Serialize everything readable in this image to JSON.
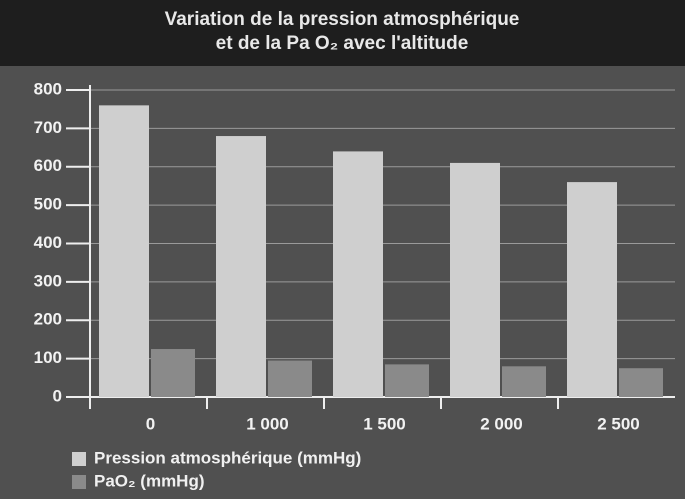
{
  "chart_data": {
    "type": "bar",
    "title_lines": [
      "Variation de la pression atmosphérique",
      "et de la Pa O₂ avec l'altitude"
    ],
    "categories": [
      "0",
      "1 000",
      "1 500",
      "2 000",
      "2 500"
    ],
    "series": [
      {
        "name": "Pression  atmosphérique (mmHg)",
        "color": "#cfcfcf",
        "values": [
          760,
          680,
          640,
          610,
          560
        ]
      },
      {
        "name": "PaO₂ (mmHg)",
        "color": "#8a8a8a",
        "values": [
          125,
          95,
          85,
          80,
          75
        ]
      }
    ],
    "ylim": [
      0,
      800
    ],
    "yticks": [
      0,
      100,
      200,
      300,
      400,
      500,
      600,
      700,
      800
    ],
    "grid": true
  }
}
